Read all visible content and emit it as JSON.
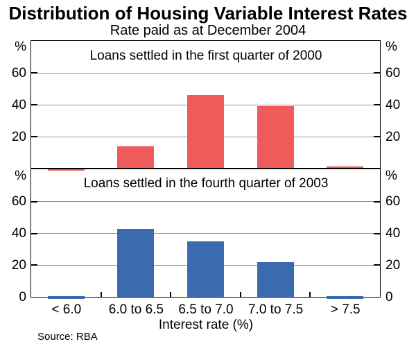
{
  "title": "Distribution of Housing Variable Interest Rates",
  "subtitle": "Rate paid as at December 2004",
  "source": "Source: RBA",
  "colors": {
    "q1_2000_bar": "#ef5a5a",
    "q4_2003_bar": "#3b6bae",
    "gridline": "#8f8f8f",
    "axis": "#000000"
  },
  "chart_data": {
    "type": "bar",
    "unit": "%",
    "categories": [
      "< 6.0",
      "6.0 to 6.5",
      "6.5 to 7.0",
      "7.0 to 7.5",
      "> 7.5"
    ],
    "xlabel": "Interest rate (%)",
    "ylim": [
      0,
      80
    ],
    "grid": true,
    "legend": "none",
    "panels": [
      {
        "label": "Loans settled in the first quarter of 2000",
        "series_name": "Q1 2000",
        "values": [
          0.5,
          14,
          46,
          39,
          1.5
        ],
        "color_key": "q1_2000_bar",
        "gridlines": [
          20,
          40,
          60
        ],
        "axis_labels": [
          "%",
          "60",
          "40",
          "20"
        ]
      },
      {
        "label": "Loans settled in the fourth quarter of 2003",
        "series_name": "Q4 2003",
        "values": [
          0.5,
          43,
          35,
          22,
          0.5
        ],
        "color_key": "q4_2003_bar",
        "gridlines": [
          20,
          40,
          60
        ],
        "axis_labels": [
          "%",
          "60",
          "40",
          "20",
          "0"
        ]
      }
    ]
  }
}
